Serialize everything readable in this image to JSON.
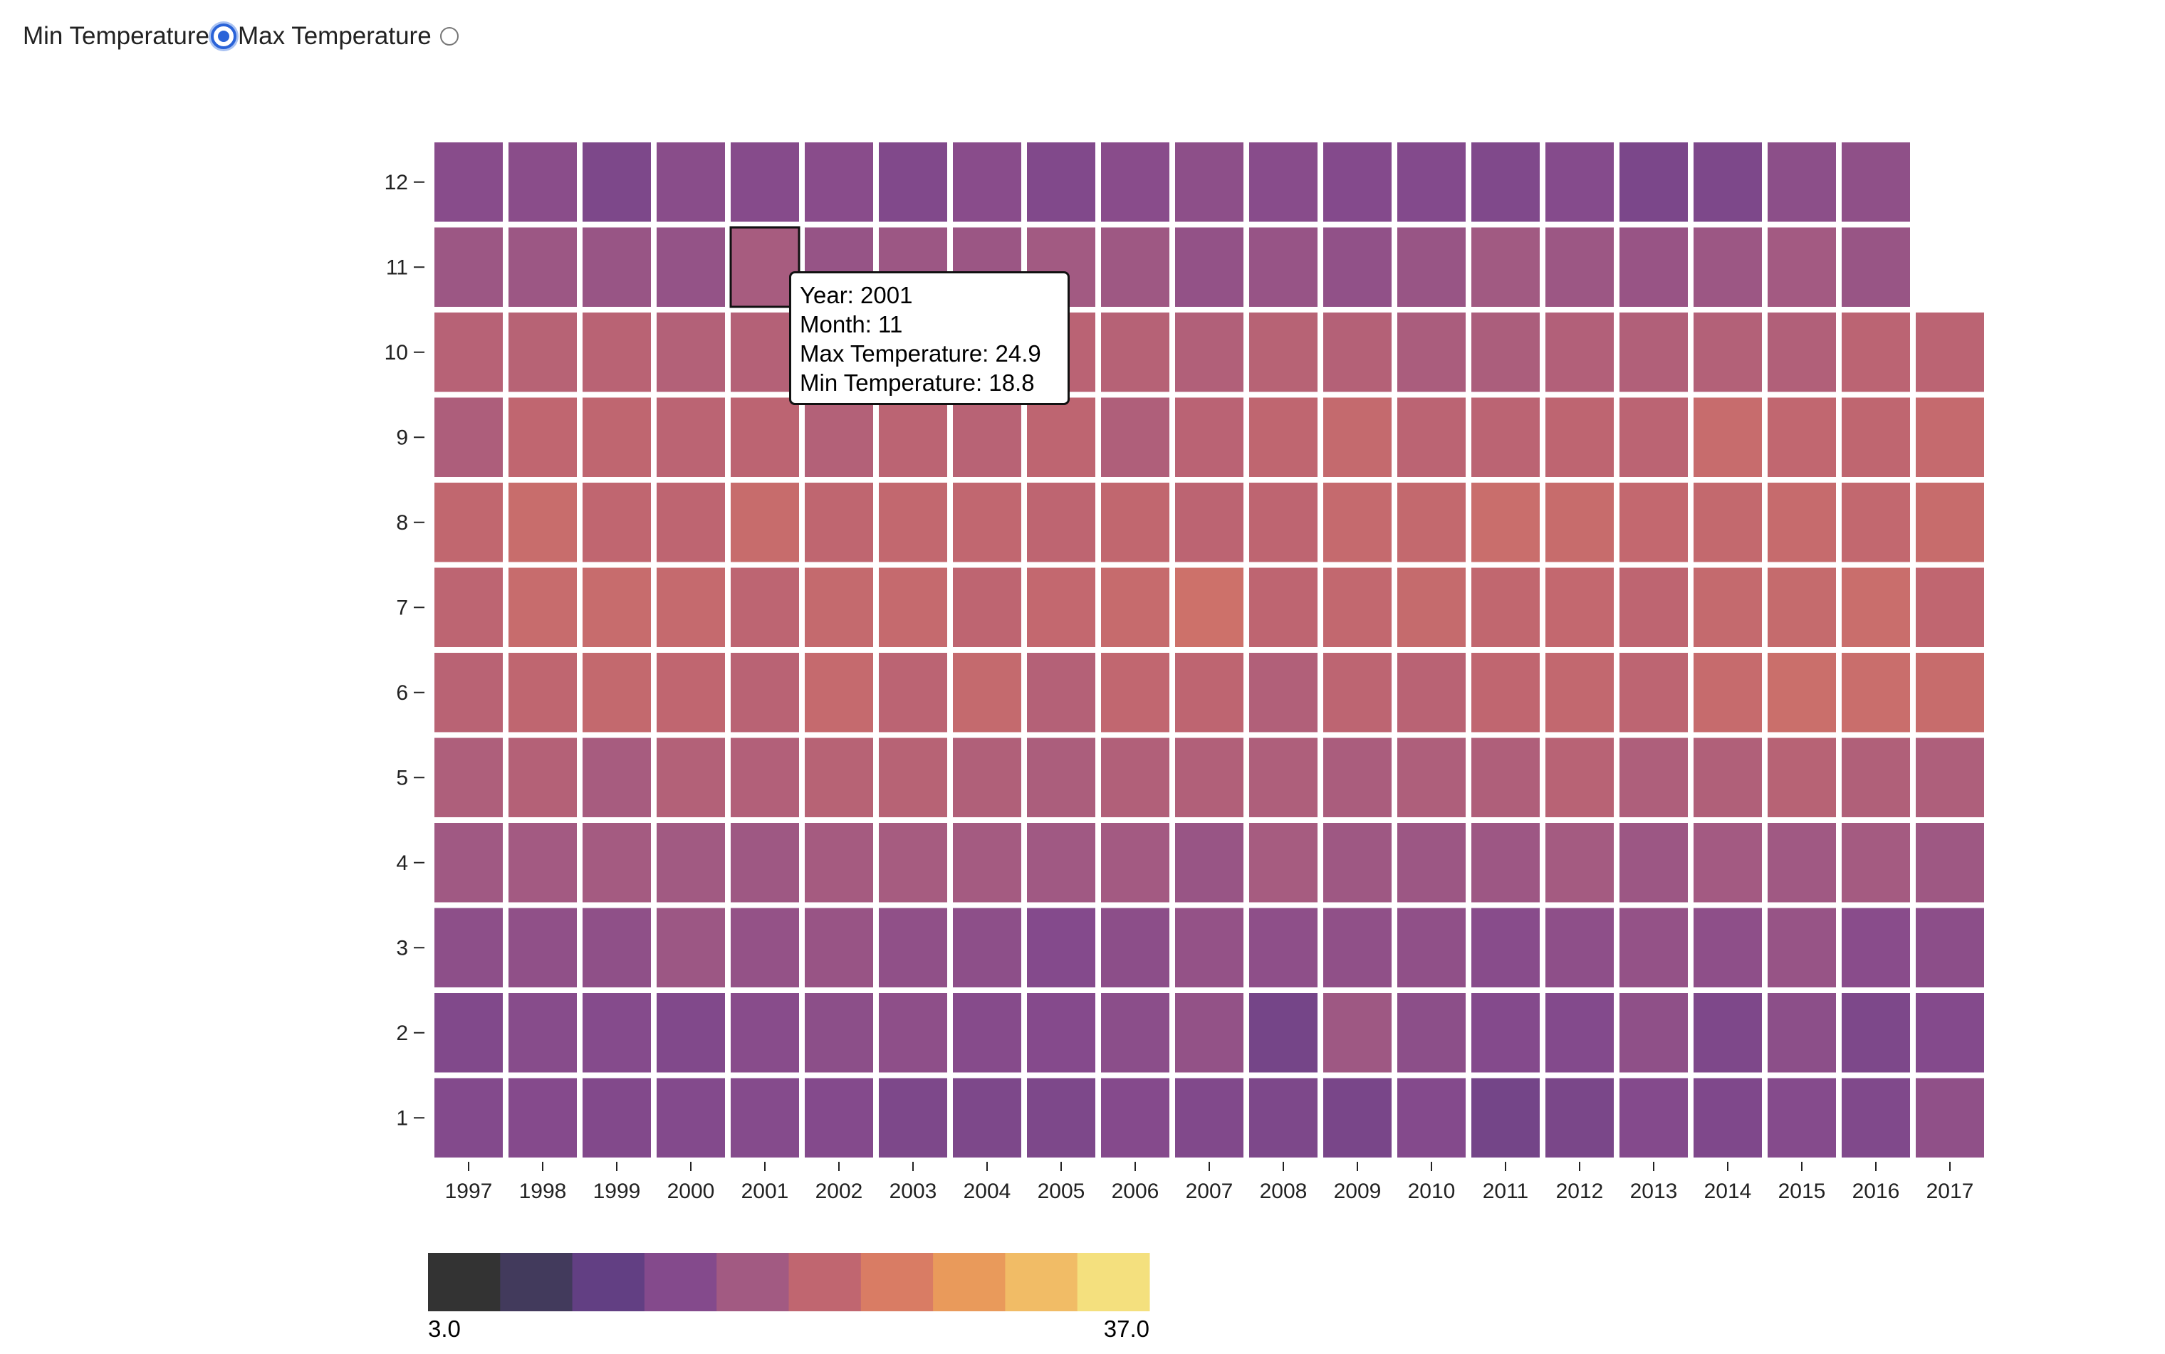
{
  "controls": {
    "min_label": "Min Temperature",
    "max_label": "Max Temperature",
    "selected": "min"
  },
  "tooltip": {
    "year": "Year: 2001",
    "month": "Month: 11",
    "max": "Max Temperature: 24.9",
    "min": "Min Temperature: 18.8"
  },
  "chart_data": {
    "type": "heatmap",
    "title": "",
    "xlabel": "",
    "ylabel": "",
    "x": [
      1997,
      1998,
      1999,
      2000,
      2001,
      2002,
      2003,
      2004,
      2005,
      2006,
      2007,
      2008,
      2009,
      2010,
      2011,
      2012,
      2013,
      2014,
      2015,
      2016,
      2017
    ],
    "y": [
      1,
      2,
      3,
      4,
      5,
      6,
      7,
      8,
      9,
      10,
      11,
      12
    ],
    "value_label": "Min Temperature",
    "color_domain": [
      3.0,
      37.0
    ],
    "legend": {
      "min_label": "3.0",
      "max_label": "37.0",
      "steps": 10
    },
    "colors": [
      "#333333",
      "#423a5c",
      "#623f83",
      "#844a8c",
      "#a25a82",
      "#c06670",
      "#d97c64",
      "#e99a5b",
      "#f1bc66",
      "#f4e07e"
    ],
    "highlight": {
      "year": 2001,
      "month": 11
    },
    "values": {
      "1": [
        14.2,
        14.4,
        14.1,
        14.2,
        14.5,
        14.3,
        13.6,
        13.5,
        13.5,
        14.4,
        14.0,
        13.5,
        13.1,
        14.3,
        12.5,
        13.2,
        14.3,
        13.8,
        14.5,
        13.9,
        15.8
      ],
      "2": [
        14.0,
        14.7,
        14.5,
        14.0,
        14.8,
        15.4,
        15.6,
        14.6,
        14.4,
        15.2,
        16.2,
        12.7,
        17.6,
        15.4,
        14.3,
        14.2,
        15.7,
        13.7,
        15.4,
        13.6,
        14.3
      ],
      "3": [
        15.5,
        15.8,
        15.7,
        17.3,
        16.3,
        16.8,
        15.8,
        15.5,
        14.3,
        15.3,
        16.3,
        15.6,
        15.8,
        15.8,
        14.8,
        15.6,
        16.3,
        15.6,
        16.7,
        14.9,
        15.3
      ],
      "4": [
        17.9,
        18.2,
        18.4,
        18.0,
        17.6,
        18.5,
        18.6,
        18.3,
        17.9,
        18.2,
        16.9,
        18.6,
        17.6,
        17.3,
        17.5,
        18.4,
        17.3,
        18.2,
        17.8,
        18.4,
        17.6
      ],
      "5": [
        19.6,
        20.4,
        18.8,
        20.3,
        20.1,
        20.8,
        20.8,
        19.9,
        19.3,
        20.0,
        20.0,
        19.6,
        19.1,
        19.6,
        19.7,
        20.9,
        19.6,
        19.9,
        20.8,
        19.9,
        19.6
      ],
      "6": [
        21.0,
        21.8,
        22.4,
        21.9,
        21.0,
        22.6,
        21.3,
        22.5,
        20.4,
        22.0,
        21.6,
        20.0,
        21.5,
        21.0,
        21.9,
        22.2,
        21.5,
        22.8,
        23.4,
        23.2,
        23.0
      ],
      "7": [
        21.5,
        22.9,
        22.9,
        22.6,
        21.5,
        22.5,
        22.6,
        21.7,
        22.3,
        22.8,
        23.8,
        21.6,
        22.2,
        22.7,
        22.1,
        22.3,
        21.7,
        22.5,
        22.7,
        23.2,
        21.9
      ],
      "8": [
        22.1,
        23.1,
        21.9,
        21.6,
        23.0,
        21.8,
        22.2,
        22.0,
        21.7,
        22.1,
        21.4,
        21.6,
        22.6,
        22.4,
        23.3,
        23.0,
        22.3,
        22.4,
        22.8,
        22.2,
        23.0
      ],
      "9": [
        19.5,
        21.9,
        21.8,
        21.3,
        21.4,
        20.2,
        21.3,
        20.9,
        21.7,
        19.7,
        21.1,
        21.8,
        22.5,
        21.2,
        21.3,
        21.6,
        21.3,
        22.9,
        22.0,
        21.8,
        22.6
      ],
      "10": [
        20.7,
        20.8,
        21.0,
        20.3,
        20.4,
        20.6,
        21.1,
        20.9,
        21.1,
        20.6,
        20.0,
        20.8,
        20.4,
        19.1,
        19.3,
        20.1,
        20.0,
        20.3,
        20.0,
        21.2,
        21.2
      ],
      "11": [
        17.3,
        17.3,
        16.9,
        16.4,
        18.8,
        16.6,
        17.3,
        17.2,
        18.1,
        17.6,
        16.2,
        16.7,
        16.0,
        16.9,
        18.0,
        17.3,
        16.8,
        17.4,
        18.2,
        16.9,
        null
      ],
      "12": [
        14.8,
        15.1,
        13.5,
        15.0,
        14.6,
        14.9,
        14.0,
        14.9,
        14.0,
        14.9,
        15.5,
        14.8,
        14.3,
        14.2,
        13.9,
        14.5,
        13.3,
        13.5,
        15.4,
        15.7,
        null
      ]
    }
  }
}
